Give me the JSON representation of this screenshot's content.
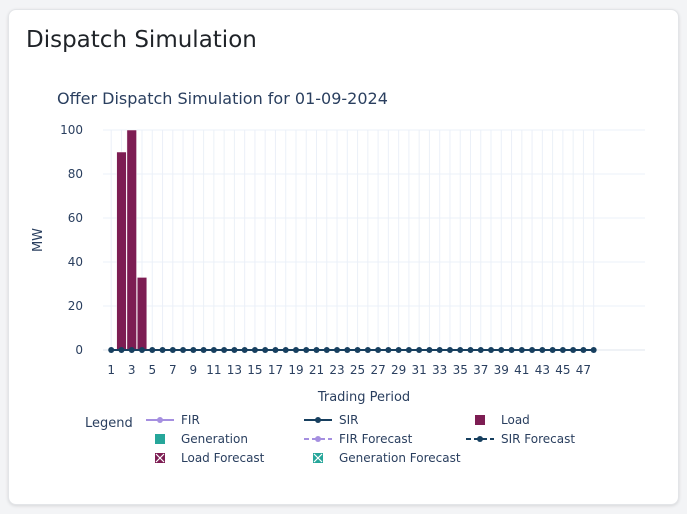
{
  "card": {
    "title": "Dispatch Simulation"
  },
  "chart_data": {
    "type": "bar",
    "title": "Offer Dispatch Simulation for 01-09-2024",
    "xlabel": "Trading Period",
    "ylabel": "MW",
    "ylim": [
      0,
      100
    ],
    "y_ticks": [
      0,
      20,
      40,
      60,
      80,
      100
    ],
    "x_range": [
      1,
      48
    ],
    "x_tick_labels": [
      "1",
      "3",
      "5",
      "7",
      "9",
      "11",
      "13",
      "15",
      "17",
      "19",
      "21",
      "23",
      "25",
      "27",
      "29",
      "31",
      "33",
      "35",
      "37",
      "39",
      "41",
      "43",
      "45",
      "47"
    ],
    "grid": true,
    "legend_placement": "bottom",
    "series": [
      {
        "name": "Load",
        "kind": "bar",
        "color": "#7d1d53",
        "x": [
          2,
          3,
          4
        ],
        "values": [
          90,
          100,
          33
        ]
      },
      {
        "name": "SIR",
        "kind": "line",
        "color": "#173f5f",
        "x": [
          1,
          2,
          3,
          4,
          5,
          6,
          7,
          8,
          9,
          10,
          11,
          12,
          13,
          14,
          15,
          16,
          17,
          18,
          19,
          20,
          21,
          22,
          23,
          24,
          25,
          26,
          27,
          28,
          29,
          30,
          31,
          32,
          33,
          34,
          35,
          36,
          37,
          38,
          39,
          40,
          41,
          42,
          43,
          44,
          45,
          46,
          47,
          48
        ],
        "values": [
          0,
          0,
          0,
          0,
          0,
          0,
          0,
          0,
          0,
          0,
          0,
          0,
          0,
          0,
          0,
          0,
          0,
          0,
          0,
          0,
          0,
          0,
          0,
          0,
          0,
          0,
          0,
          0,
          0,
          0,
          0,
          0,
          0,
          0,
          0,
          0,
          0,
          0,
          0,
          0,
          0,
          0,
          0,
          0,
          0,
          0,
          0,
          0
        ]
      }
    ],
    "legend": {
      "title": "Legend",
      "items": [
        {
          "name": "FIR",
          "symbol": "line-dot",
          "color": "#a58fe0"
        },
        {
          "name": "SIR",
          "symbol": "line-dot",
          "color": "#173f5f"
        },
        {
          "name": "Load",
          "symbol": "square",
          "color": "#7d1d53"
        },
        {
          "name": "Generation",
          "symbol": "square",
          "color": "#26a69a"
        },
        {
          "name": "FIR Forecast",
          "symbol": "dash-dot",
          "color": "#a58fe0"
        },
        {
          "name": "SIR Forecast",
          "symbol": "dash-dot",
          "color": "#173f5f"
        },
        {
          "name": "Load Forecast",
          "symbol": "square-x",
          "color": "#7d1d53"
        },
        {
          "name": "Generation Forecast",
          "symbol": "square-x",
          "color": "#26a69a"
        }
      ]
    }
  }
}
